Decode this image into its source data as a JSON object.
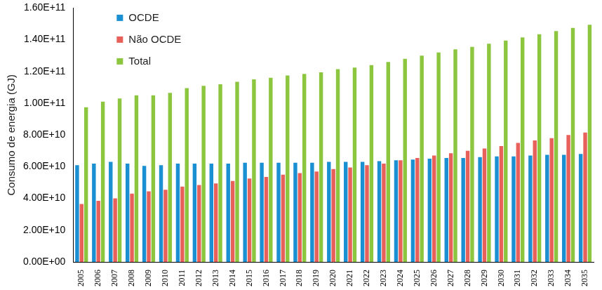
{
  "chart_data": {
    "type": "bar",
    "y_label": "Consumo de energia (GJ)",
    "categories": [
      "2005",
      "2006",
      "2007",
      "2008",
      "2009",
      "2010",
      "2011",
      "2012",
      "2013",
      "2014",
      "2015",
      "2016",
      "2017",
      "2018",
      "2019",
      "2020",
      "2021",
      "2022",
      "2023",
      "2024",
      "2025",
      "2026",
      "2027",
      "2028",
      "2029",
      "2030",
      "2031",
      "2032",
      "2033",
      "2034",
      "2035"
    ],
    "series": [
      {
        "name": "OCDE",
        "color": "#1a8fd2",
        "values": [
          61000000000,
          62000000000,
          63000000000,
          62000000000,
          60500000000,
          61000000000,
          62000000000,
          62000000000,
          62000000000,
          62000000000,
          62500000000,
          62500000000,
          62500000000,
          62500000000,
          62500000000,
          63000000000,
          63000000000,
          63000000000,
          63500000000,
          64000000000,
          64500000000,
          65000000000,
          65500000000,
          65500000000,
          66000000000,
          66500000000,
          66500000000,
          67000000000,
          67500000000,
          67500000000,
          68000000000
        ]
      },
      {
        "name": "Não OCDE",
        "color": "#e8605a",
        "values": [
          36500000000,
          38500000000,
          40000000000,
          43000000000,
          44500000000,
          45500000000,
          47500000000,
          48500000000,
          49500000000,
          51000000000,
          52500000000,
          53500000000,
          55000000000,
          56000000000,
          57000000000,
          58500000000,
          59500000000,
          61000000000,
          62000000000,
          64000000000,
          65500000000,
          67000000000,
          68500000000,
          70000000000,
          71500000000,
          73000000000,
          75000000000,
          76500000000,
          78000000000,
          80000000000,
          81500000000
        ]
      },
      {
        "name": "Total",
        "color": "#8cc63f",
        "values": [
          97500000000,
          101000000000,
          103000000000,
          105000000000,
          105000000000,
          106500000000,
          109500000000,
          111000000000,
          112000000000,
          113500000000,
          115000000000,
          116000000000,
          117500000000,
          118500000000,
          119500000000,
          121500000000,
          122500000000,
          124000000000,
          126000000000,
          128000000000,
          130000000000,
          132000000000,
          134000000000,
          135500000000,
          137500000000,
          139500000000,
          141500000000,
          143500000000,
          145500000000,
          147500000000,
          149500000000
        ]
      }
    ],
    "ylim": [
      0,
      160000000000
    ],
    "yticks": [
      {
        "value": 0,
        "label": "0.00E+00"
      },
      {
        "value": 20000000000,
        "label": "2.00E+10"
      },
      {
        "value": 40000000000,
        "label": "4.00E+10"
      },
      {
        "value": 60000000000,
        "label": "6.00E+10"
      },
      {
        "value": 80000000000,
        "label": "8.00E+10"
      },
      {
        "value": 100000000000,
        "label": "1.00E+11"
      },
      {
        "value": 120000000000,
        "label": "1.20E+11"
      },
      {
        "value": 140000000000,
        "label": "1.40E+11"
      },
      {
        "value": 160000000000,
        "label": "1.60E+11"
      }
    ],
    "grid": false,
    "legend": "top-left"
  }
}
